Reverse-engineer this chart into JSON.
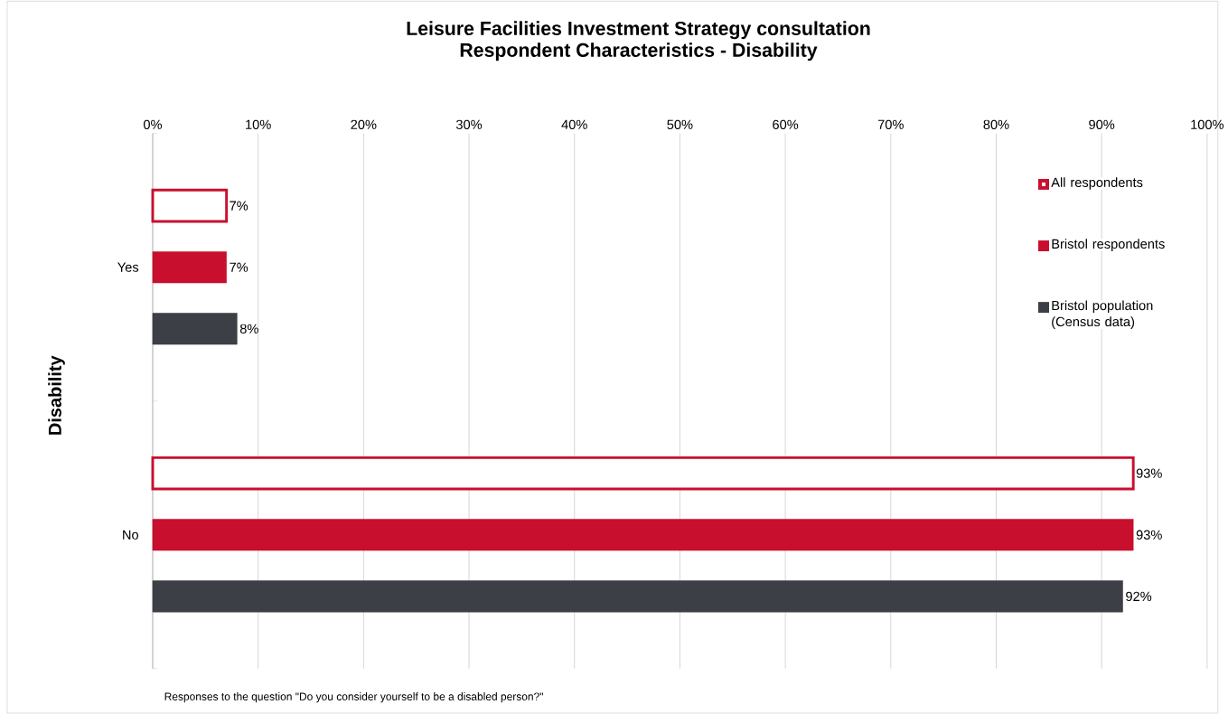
{
  "chart_data": {
    "type": "bar",
    "orientation": "horizontal",
    "title": "Leisure Facilities Investment Strategy consultation",
    "subtitle": "Respondent Characteristics - Disability",
    "ylabel": "Disability",
    "categories": [
      "Yes",
      "No"
    ],
    "series": [
      {
        "name": "All respondents",
        "color": "#c8102e",
        "values": [
          7,
          93
        ],
        "value_labels": [
          "7%",
          "93%"
        ]
      },
      {
        "name": "Bristol respondents",
        "color": "#c8102e",
        "values": [
          7,
          93
        ],
        "value_labels": [
          "7%",
          "93%"
        ]
      },
      {
        "name": "Bristol population (Census data)",
        "color": "#3c3f45",
        "values": [
          8,
          92
        ],
        "value_labels": [
          "8%",
          "92%"
        ]
      }
    ],
    "xlim": [
      0,
      100
    ],
    "xticks": [
      {
        "value": 0,
        "label": "0%"
      },
      {
        "value": 10,
        "label": "10%"
      },
      {
        "value": 20,
        "label": "20%"
      },
      {
        "value": 30,
        "label": "30%"
      },
      {
        "value": 40,
        "label": "40%"
      },
      {
        "value": 50,
        "label": "50%"
      },
      {
        "value": 60,
        "label": "60%"
      },
      {
        "value": 70,
        "label": "70%"
      },
      {
        "value": 80,
        "label": "80%"
      },
      {
        "value": 90,
        "label": "90%"
      },
      {
        "value": 100,
        "label": "100%"
      }
    ],
    "grid": "x",
    "legend": "top right",
    "annotations": [
      "Responses to the question \"Do you consider yourself to be a disabled person?\""
    ]
  }
}
